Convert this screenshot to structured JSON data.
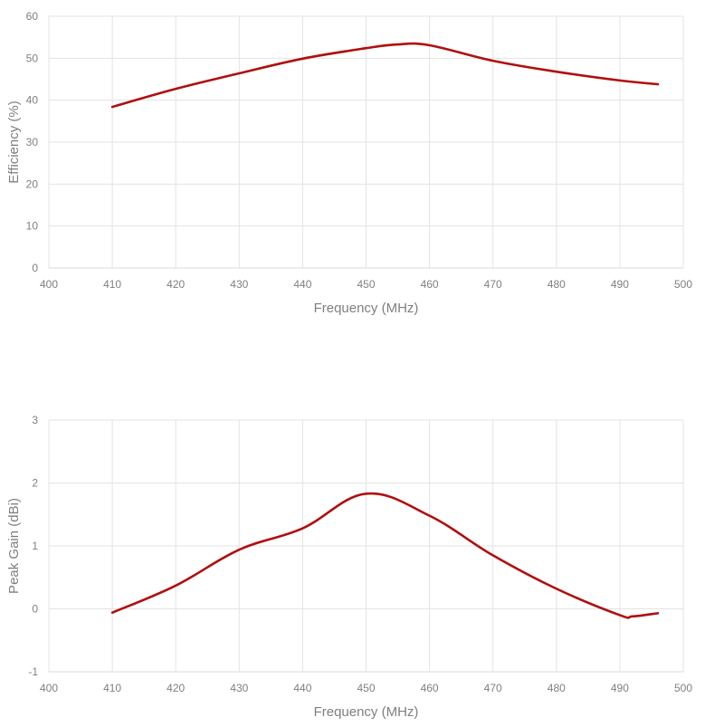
{
  "chart_data": [
    {
      "type": "line",
      "title": "",
      "xlabel": "Frequency (MHz)",
      "ylabel": "Efficiency (%)",
      "xlim": [
        400,
        500
      ],
      "ylim": [
        0,
        60
      ],
      "xticks": [
        400,
        410,
        420,
        430,
        440,
        450,
        460,
        470,
        480,
        490,
        500
      ],
      "yticks": [
        0,
        10,
        20,
        30,
        40,
        50,
        60
      ],
      "grid": true,
      "legend": null,
      "series": [
        {
          "name": "Efficiency",
          "color": "#b00f0f",
          "x": [
            410,
            420,
            430,
            440,
            450,
            455,
            460,
            470,
            480,
            490,
            496
          ],
          "values": [
            38.4,
            42.7,
            46.4,
            49.9,
            52.4,
            53.3,
            53.1,
            49.4,
            46.8,
            44.7,
            43.8
          ]
        }
      ]
    },
    {
      "type": "line",
      "title": "",
      "xlabel": "Frequency (MHz)",
      "ylabel": "Peak Gain (dBi)",
      "xlim": [
        400,
        500
      ],
      "ylim": [
        -1,
        3
      ],
      "xticks": [
        400,
        410,
        420,
        430,
        440,
        450,
        460,
        470,
        480,
        490,
        500
      ],
      "yticks": [
        -1,
        0,
        1,
        2,
        3
      ],
      "grid": true,
      "legend": null,
      "series": [
        {
          "name": "Peak Gain",
          "color": "#b00f0f",
          "x": [
            410,
            420,
            430,
            440,
            450,
            460,
            470,
            480,
            490,
            492,
            496
          ],
          "values": [
            -0.06,
            0.37,
            0.94,
            1.28,
            1.83,
            1.48,
            0.85,
            0.32,
            -0.1,
            -0.12,
            -0.07
          ]
        }
      ]
    }
  ]
}
